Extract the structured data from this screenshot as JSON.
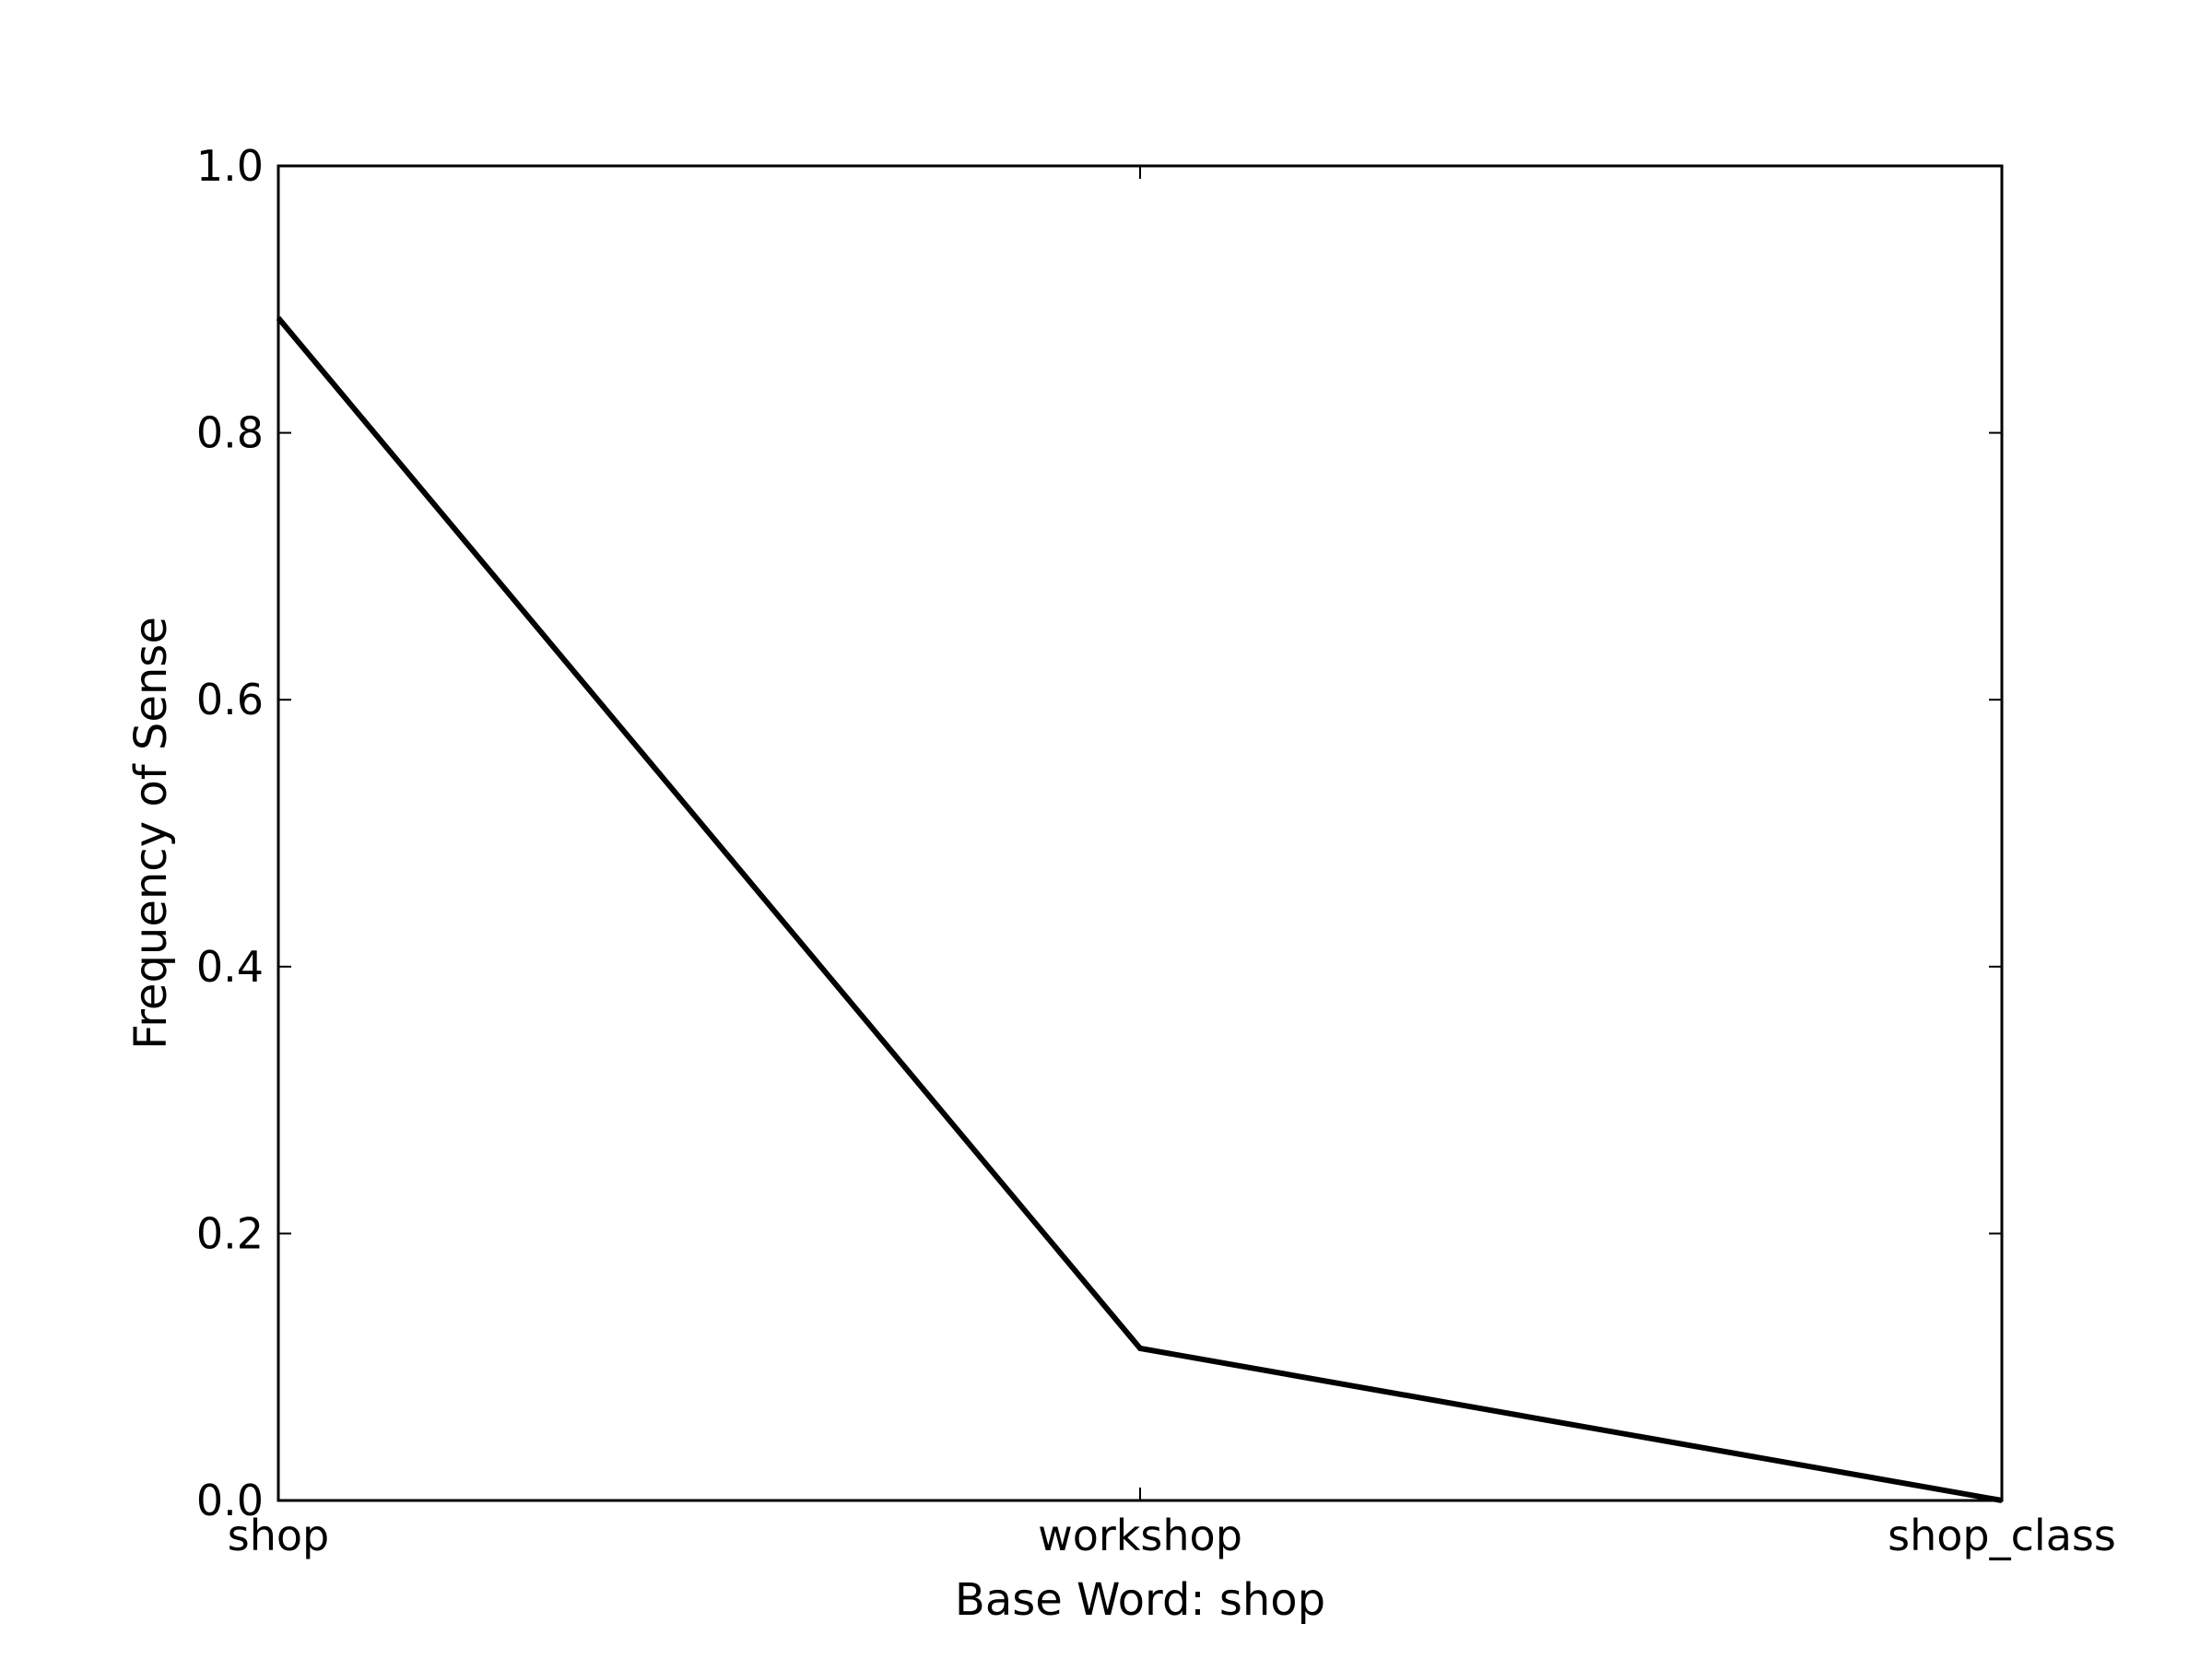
{
  "chart_data": {
    "type": "line",
    "title": "",
    "xlabel": "Base Word: shop",
    "ylabel": "Frequency of Sense",
    "categories": [
      "shop",
      "workshop",
      "shop_class"
    ],
    "series": [
      {
        "values": [
          0.886,
          0.114,
          0.0
        ],
        "color": "#000000"
      }
    ],
    "ylim": [
      0.0,
      1.0
    ],
    "yticks": [
      "0.0",
      "0.2",
      "0.4",
      "0.6",
      "0.8",
      "1.0"
    ],
    "grid": false,
    "legend": "none"
  }
}
